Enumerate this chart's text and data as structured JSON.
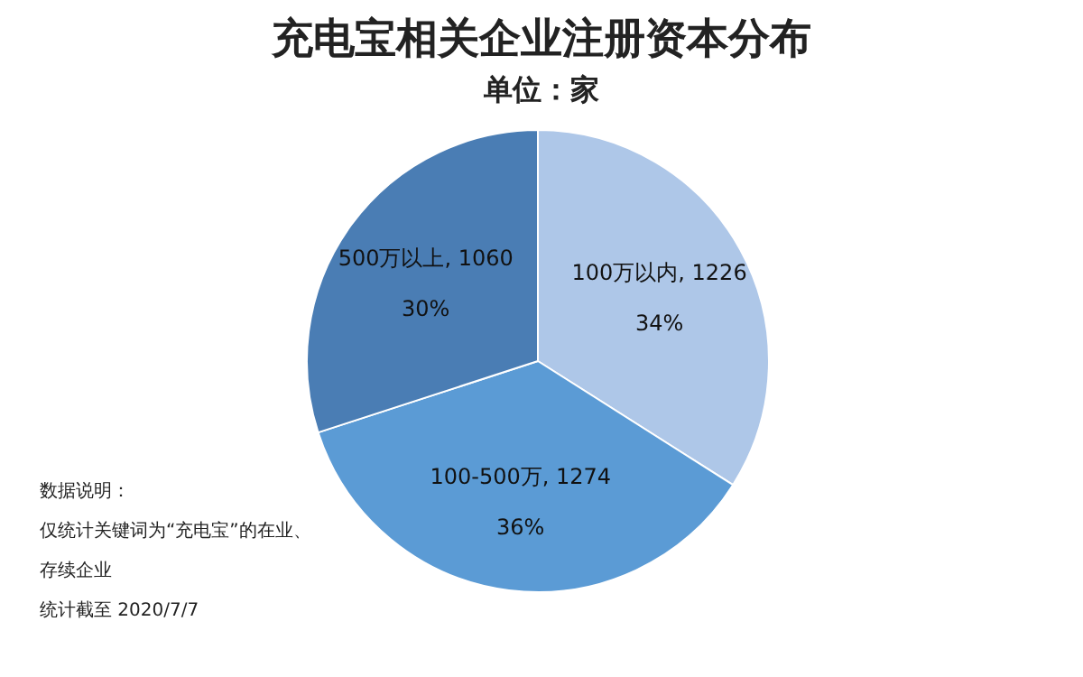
{
  "chart_data": {
    "type": "pie",
    "title": "充电宝相关企业注册资本分布",
    "subtitle": "单位：家",
    "categories": [
      "100万以内, 1226",
      "100-500万, 1274",
      "500万以上, 1060"
    ],
    "values": [
      34,
      36,
      30
    ],
    "colors": [
      "#aec7e8",
      "#5b9bd5",
      "#4a7db4"
    ],
    "value_labels": [
      "34%",
      "36%",
      "30%"
    ],
    "legend": false,
    "annotations": [
      "数据说明：",
      "仅统计关键词为“充电宝”的在业、",
      "存续企业",
      "统计截至 2020/7/7"
    ]
  }
}
